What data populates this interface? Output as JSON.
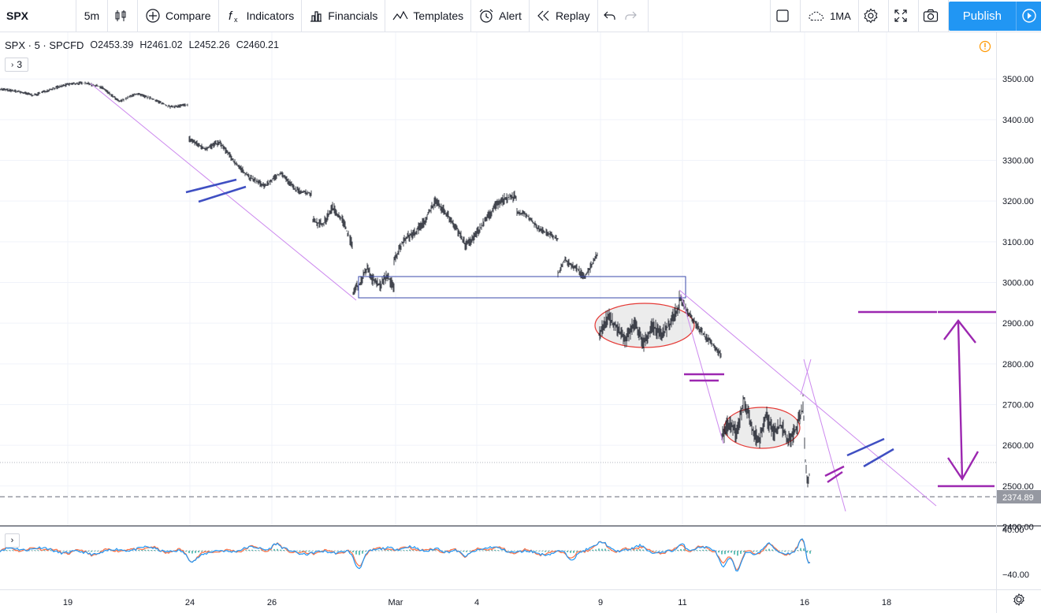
{
  "toolbar": {
    "symbol": "SPX",
    "interval": "5m",
    "compare": "Compare",
    "indicators": "Indicators",
    "financials": "Financials",
    "templates": "Templates",
    "alert": "Alert",
    "replay": "Replay",
    "layout_name": "1MA",
    "publish": "Publish"
  },
  "legend": {
    "title": "SPX · 5 · SPCFD",
    "open": "O2453.39",
    "high": "H2461.02",
    "low": "L2452.26",
    "close": "C2460.21",
    "indicator_count": "3"
  },
  "price_axis": {
    "ticks": [
      "3500.00",
      "3400.00",
      "3300.00",
      "3200.00",
      "3100.00",
      "3000.00",
      "2900.00",
      "2800.00",
      "2700.00",
      "2600.00",
      "2500.00",
      "2400.00"
    ],
    "last_price": "2374.89"
  },
  "osc_axis": {
    "ticks": [
      "40.00",
      "−40.00"
    ]
  },
  "time_axis": {
    "ticks": [
      "19",
      "24",
      "26",
      "Mar",
      "4",
      "9",
      "11",
      "16",
      "18"
    ]
  },
  "colors": {
    "accent": "#2196f3",
    "drawing_violet": "#cc88ee",
    "drawing_blue": "#3f4fc2",
    "drawing_purple": "#9c27b0",
    "ellipse_red": "#e53935",
    "osc_blue": "#2196f3",
    "osc_orange": "#ff7043",
    "osc_teal": "#26a69a"
  }
}
